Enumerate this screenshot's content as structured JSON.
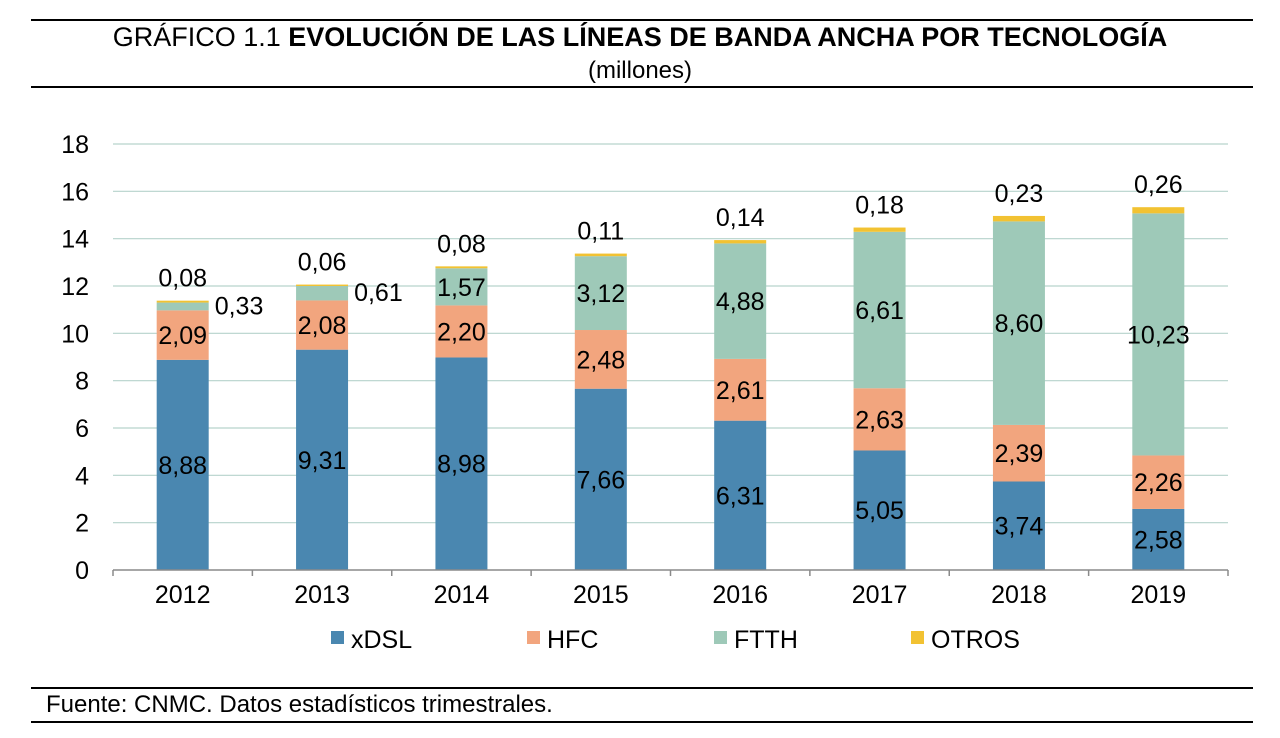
{
  "header": {
    "prefix": "GRÁFICO 1.1",
    "title": "EVOLUCIÓN DE LAS LÍNEAS DE BANDA ANCHA POR TECNOLOGÍA",
    "subtitle": "(millones)"
  },
  "footer": {
    "source": "Fuente: CNMC. Datos estadísticos trimestrales."
  },
  "chart_data": {
    "type": "bar",
    "stacked": true,
    "title": "EVOLUCIÓN DE LAS LÍNEAS DE BANDA ANCHA POR TECNOLOGÍA",
    "subtitle": "(millones)",
    "categories": [
      "2012",
      "2013",
      "2014",
      "2015",
      "2016",
      "2017",
      "2018",
      "2019"
    ],
    "ylim": [
      0,
      18
    ],
    "yticks": [
      0,
      2,
      4,
      6,
      8,
      10,
      12,
      14,
      16,
      18
    ],
    "grid": true,
    "legend": "bottom",
    "series": [
      {
        "name": "xDSL",
        "color": "#4a87b0",
        "values": [
          8.88,
          9.31,
          8.98,
          7.66,
          6.31,
          5.05,
          3.74,
          2.58
        ],
        "labels": [
          "8,88",
          "9,31",
          "8,98",
          "7,66",
          "6,31",
          "5,05",
          "3,74",
          "2,58"
        ]
      },
      {
        "name": "HFC",
        "color": "#f2a57e",
        "values": [
          2.09,
          2.08,
          2.2,
          2.48,
          2.61,
          2.63,
          2.39,
          2.26
        ],
        "labels": [
          "2,09",
          "2,08",
          "2,20",
          "2,48",
          "2,61",
          "2,63",
          "2,39",
          "2,26"
        ]
      },
      {
        "name": "FTTH",
        "color": "#9ec9b8",
        "values": [
          0.33,
          0.61,
          1.57,
          3.12,
          4.88,
          6.61,
          8.6,
          10.23
        ],
        "labels": [
          "0,33",
          "0,61",
          "1,57",
          "3,12",
          "4,88",
          "6,61",
          "8,60",
          "10,23"
        ]
      },
      {
        "name": "OTROS",
        "color": "#f2c232",
        "values": [
          0.08,
          0.06,
          0.08,
          0.11,
          0.14,
          0.18,
          0.23,
          0.26
        ],
        "labels": [
          "0,08",
          "0,06",
          "0,08",
          "0,11",
          "0,14",
          "0,18",
          "0,23",
          "0,26"
        ]
      }
    ]
  }
}
